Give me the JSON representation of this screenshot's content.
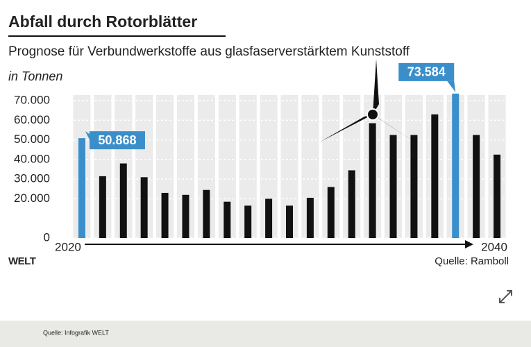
{
  "chart_data": {
    "type": "bar",
    "title": "Abfall durch Rotorblätter",
    "subtitle": "Prognose für Verbundwerkstoffe aus glasfaserverstärktem Kunststoff",
    "y_label": "in Tonnen",
    "categories": [
      "2020",
      null,
      null,
      null,
      null,
      null,
      null,
      null,
      null,
      null,
      null,
      null,
      null,
      null,
      null,
      null,
      null,
      null,
      null,
      null,
      "2040"
    ],
    "values": [
      50868,
      31500,
      38000,
      31000,
      23000,
      22000,
      24500,
      18500,
      16500,
      20000,
      16500,
      20500,
      26000,
      34500,
      58500,
      52500,
      52500,
      63000,
      73584,
      52500,
      42500
    ],
    "value_labels": [
      "50.868",
      null,
      null,
      null,
      null,
      null,
      null,
      null,
      null,
      null,
      null,
      null,
      null,
      null,
      null,
      null,
      null,
      null,
      "73.584",
      null,
      null
    ],
    "colors": [
      "#3a8fcb",
      "#111111",
      "#111111",
      "#111111",
      "#111111",
      "#111111",
      "#111111",
      "#111111",
      "#111111",
      "#111111",
      "#111111",
      "#111111",
      "#111111",
      "#111111",
      "#111111",
      "#111111",
      "#111111",
      "#111111",
      "#3a8fcb",
      "#111111",
      "#111111"
    ],
    "ylim": [
      0,
      70000
    ],
    "yticks": [
      0,
      {
        "value": 20000,
        "label": "20.000"
      },
      {
        "value": 30000,
        "label": "30.000"
      },
      {
        "value": 40000,
        "label": "40.000"
      },
      {
        "value": 50000,
        "label": "50.000"
      },
      {
        "value": 60000,
        "label": "60.000"
      },
      {
        "value": 70000,
        "label": "70.000"
      }
    ],
    "grid": true,
    "brand": "WELT",
    "source": "Quelle: Ramboll"
  },
  "footer": {
    "source": "Quelle: Infografik WELT"
  }
}
